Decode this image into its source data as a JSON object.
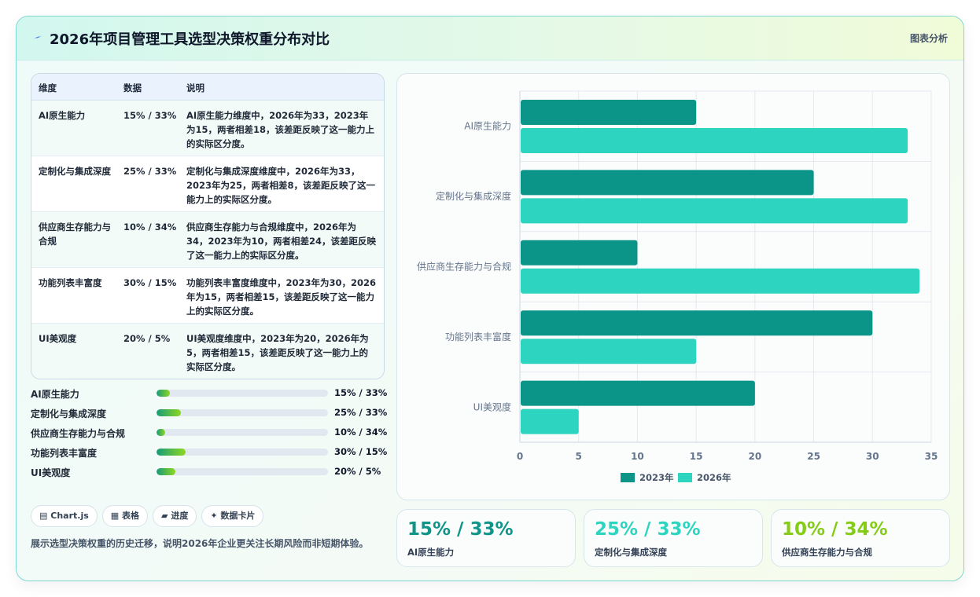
{
  "header": {
    "title": "2026年项目管理工具选型决策权重分布对比",
    "tag": "图表分析",
    "logo_icon": "lightning-icon"
  },
  "table": {
    "columns": [
      "维度",
      "数据",
      "说明"
    ],
    "rows": [
      {
        "dimension": "AI原生能力",
        "data": "15% / 33%",
        "note": "AI原生能力维度中，2026年为33，2023年为15，两者相差18，该差距反映了这一能力上的实际区分度。"
      },
      {
        "dimension": "定制化与集成深度",
        "data": "25% / 33%",
        "note": "定制化与集成深度维度中，2026年为33，2023年为25，两者相差8，该差距反映了这一能力上的实际区分度。"
      },
      {
        "dimension": "供应商生存能力与合规",
        "data": "10% / 34%",
        "note": "供应商生存能力与合规维度中，2026年为34，2023年为10，两者相差24，该差距反映了这一能力上的实际区分度。"
      },
      {
        "dimension": "功能列表丰富度",
        "data": "30% / 15%",
        "note": "功能列表丰富度维度中，2023年为30，2026年为15，两者相差15，该差距反映了这一能力上的实际区分度。"
      },
      {
        "dimension": "UI美观度",
        "data": "20% / 5%",
        "note": "UI美观度维度中，2023年为20，2026年为5，两者相差15，该差距反映了这一能力上的实际区分度。"
      }
    ]
  },
  "progress": [
    {
      "label": "AI原生能力",
      "value_text": "15% / 33%",
      "fill": 0.08
    },
    {
      "label": "定制化与集成深度",
      "value_text": "25% / 33%",
      "fill": 0.14
    },
    {
      "label": "供应商生存能力与合规",
      "value_text": "10% / 34%",
      "fill": 0.05
    },
    {
      "label": "功能列表丰富度",
      "value_text": "30% / 15%",
      "fill": 0.17
    },
    {
      "label": "UI美观度",
      "value_text": "20% / 5%",
      "fill": 0.11
    }
  ],
  "chips": [
    {
      "icon": "chart-icon",
      "glyph": "▤",
      "label": "Chart.js"
    },
    {
      "icon": "table-icon",
      "glyph": "▦",
      "label": "表格"
    },
    {
      "icon": "progress-icon",
      "glyph": "▰",
      "label": "进度"
    },
    {
      "icon": "sparkle-icon",
      "glyph": "✦",
      "label": "数据卡片"
    }
  ],
  "description": "展示选型决策权重的历史迁移，说明2026年企业更关注长期风险而非短期体验。",
  "kpis": [
    {
      "value": "15% / 33%",
      "caption": "AI原生能力",
      "color": "#0e9488"
    },
    {
      "value": "25% / 33%",
      "caption": "定制化与集成深度",
      "color": "#2dd4bf"
    },
    {
      "value": "10% / 34%",
      "caption": "供应商生存能力与合规",
      "color": "#84cc16"
    }
  ],
  "chart_data": {
    "type": "bar",
    "orientation": "horizontal",
    "categories": [
      "AI原生能力",
      "定制化与集成深度",
      "供应商生存能力与合规",
      "功能列表丰富度",
      "UI美观度"
    ],
    "series": [
      {
        "name": "2023年",
        "values": [
          15,
          25,
          10,
          30,
          20
        ],
        "color": "#0b9488"
      },
      {
        "name": "2026年",
        "values": [
          33,
          33,
          34,
          15,
          5
        ],
        "color": "#2dd4bf"
      }
    ],
    "xlim": [
      0,
      35
    ],
    "xticks": [
      0,
      5,
      10,
      15,
      20,
      25,
      30,
      35
    ],
    "grid": true,
    "legend": "bottom"
  }
}
